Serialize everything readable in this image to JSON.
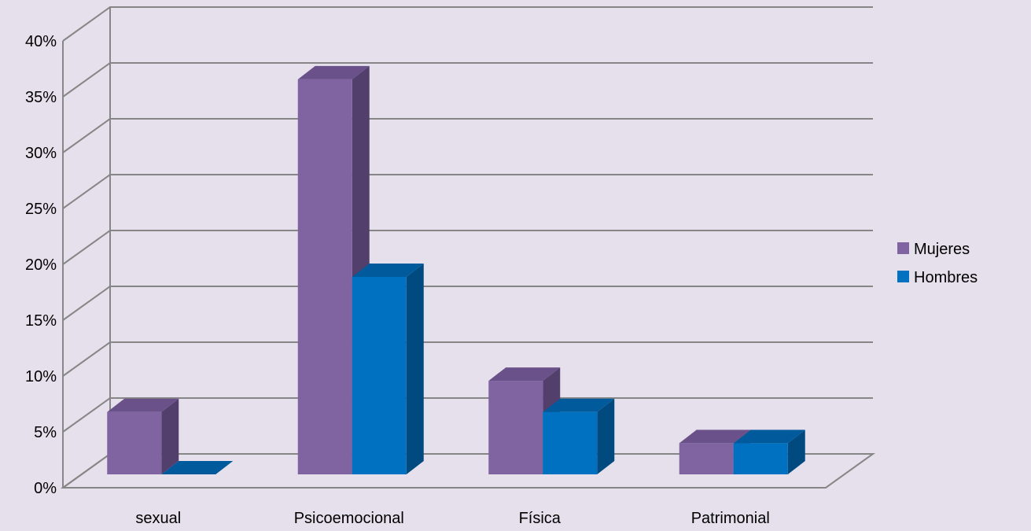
{
  "chart_data": {
    "type": "bar",
    "categories": [
      "sexual",
      "Psicoemocional",
      "Física",
      "Patrimonial"
    ],
    "series": [
      {
        "name": "Mujeres",
        "values": [
          6,
          38,
          9,
          3
        ],
        "color": "#8064a2",
        "side_color": "#533f6b",
        "top_color": "#6a5189"
      },
      {
        "name": "Hombres",
        "values": [
          0,
          19,
          6,
          3
        ],
        "color": "#0070c0",
        "side_color": "#004a80",
        "top_color": "#005a9c"
      }
    ],
    "ylim": [
      0,
      40
    ],
    "ytick_step": 5,
    "ytick_labels": [
      "0%",
      "5%",
      "10%",
      "15%",
      "20%",
      "25%",
      "30%",
      "35%",
      "40%"
    ],
    "grid": true,
    "legend_position": "right",
    "three_d": true
  }
}
